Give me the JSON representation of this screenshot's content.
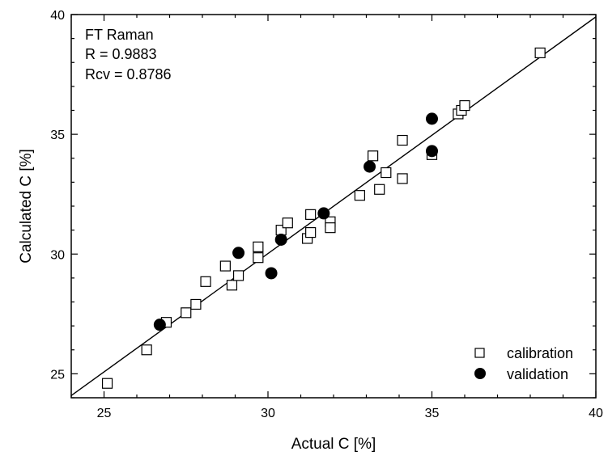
{
  "chart_data": {
    "type": "scatter",
    "title": "",
    "xlabel": "Actual C [%]",
    "ylabel": "Calculated C [%]",
    "xlim": [
      24,
      40
    ],
    "ylim": [
      24,
      40
    ],
    "xticks": [
      25,
      30,
      35,
      40
    ],
    "yticks": [
      25,
      30,
      35,
      40
    ],
    "grid": false,
    "legend_position": "bottom-right",
    "annotations": [
      "FT Raman",
      "R = 0.9883",
      "Rcv = 0.8786"
    ],
    "regression_line": {
      "slope": 0.9883,
      "intercept": 0.371,
      "x_range": [
        24,
        40
      ]
    },
    "series": [
      {
        "name": "calibration",
        "marker": "open-square",
        "color": "#000000",
        "points": [
          [
            25.1,
            24.6
          ],
          [
            26.3,
            26.0
          ],
          [
            26.9,
            27.15
          ],
          [
            27.5,
            27.55
          ],
          [
            27.8,
            27.9
          ],
          [
            28.1,
            28.85
          ],
          [
            28.7,
            29.5
          ],
          [
            28.9,
            28.7
          ],
          [
            29.1,
            29.1
          ],
          [
            29.7,
            29.85
          ],
          [
            29.7,
            30.3
          ],
          [
            30.4,
            31.0
          ],
          [
            30.6,
            31.3
          ],
          [
            31.2,
            30.65
          ],
          [
            31.3,
            31.65
          ],
          [
            31.3,
            30.9
          ],
          [
            31.9,
            31.35
          ],
          [
            31.9,
            31.1
          ],
          [
            32.8,
            32.45
          ],
          [
            33.2,
            34.1
          ],
          [
            33.4,
            32.7
          ],
          [
            33.6,
            33.4
          ],
          [
            34.1,
            33.15
          ],
          [
            34.1,
            34.75
          ],
          [
            35.0,
            34.15
          ],
          [
            35.8,
            35.85
          ],
          [
            35.9,
            36.0
          ],
          [
            36.0,
            36.2
          ],
          [
            38.3,
            38.4
          ]
        ]
      },
      {
        "name": "validation",
        "marker": "filled-circle",
        "color": "#000000",
        "points": [
          [
            26.7,
            27.05
          ],
          [
            29.1,
            30.05
          ],
          [
            30.1,
            29.2
          ],
          [
            30.4,
            30.6
          ],
          [
            31.7,
            31.7
          ],
          [
            33.1,
            33.65
          ],
          [
            35.0,
            35.65
          ],
          [
            35.0,
            34.3
          ]
        ]
      }
    ]
  }
}
